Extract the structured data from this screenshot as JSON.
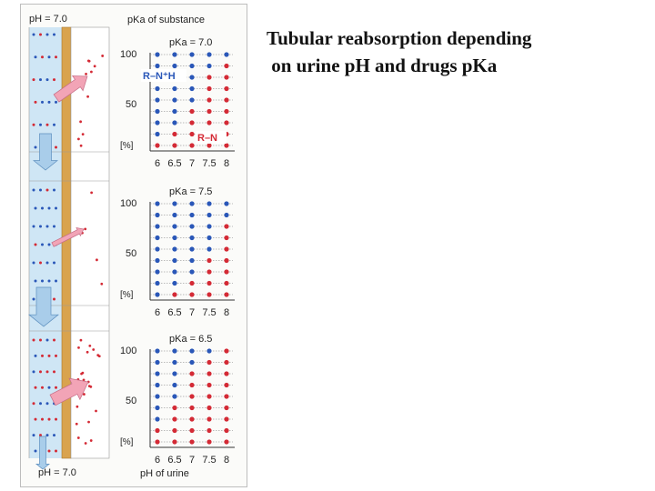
{
  "heading": {
    "line1": "Tubular reabsorption depending",
    "line2": " on urine pH and drugs pKa"
  },
  "figure": {
    "top_ph_label": "pH = 7.0",
    "bottom_ph_label": "pH = 7.0",
    "pka_header": "pKa of substance",
    "urine_label": "pH of urine",
    "protonated_label": "R–N⁺H",
    "unprotonated_label": "R–N",
    "colors": {
      "lumen": "#cfe6f5",
      "membrane": "#d9a34e",
      "ionized_dot": "#2a57b8",
      "unionized_dot": "#d42a35",
      "arrow_pink": "#f2a4b6",
      "arrow_blue": "#a9cdea"
    },
    "panels": [
      {
        "pka_label": "pKa = 7.0",
        "y_max": "100",
        "y_mid": "50",
        "y_unit": "[%]",
        "x_ticks": [
          "6",
          "6.5",
          "7",
          "7.5",
          "8"
        ],
        "pka": 7.0,
        "reabsorption_strength": 1.0
      },
      {
        "pka_label": "pKa = 7.5",
        "y_max": "100",
        "y_mid": "50",
        "y_unit": "[%]",
        "x_ticks": [
          "6",
          "6.5",
          "7",
          "7.5",
          "8"
        ],
        "pka": 7.5,
        "reabsorption_strength": 0.6
      },
      {
        "pka_label": "pKa = 6.5",
        "y_max": "100",
        "y_mid": "50",
        "y_unit": "[%]",
        "x_ticks": [
          "6",
          "6.5",
          "7",
          "7.5",
          "8"
        ],
        "pka": 6.5,
        "reabsorption_strength": 1.0
      }
    ]
  }
}
